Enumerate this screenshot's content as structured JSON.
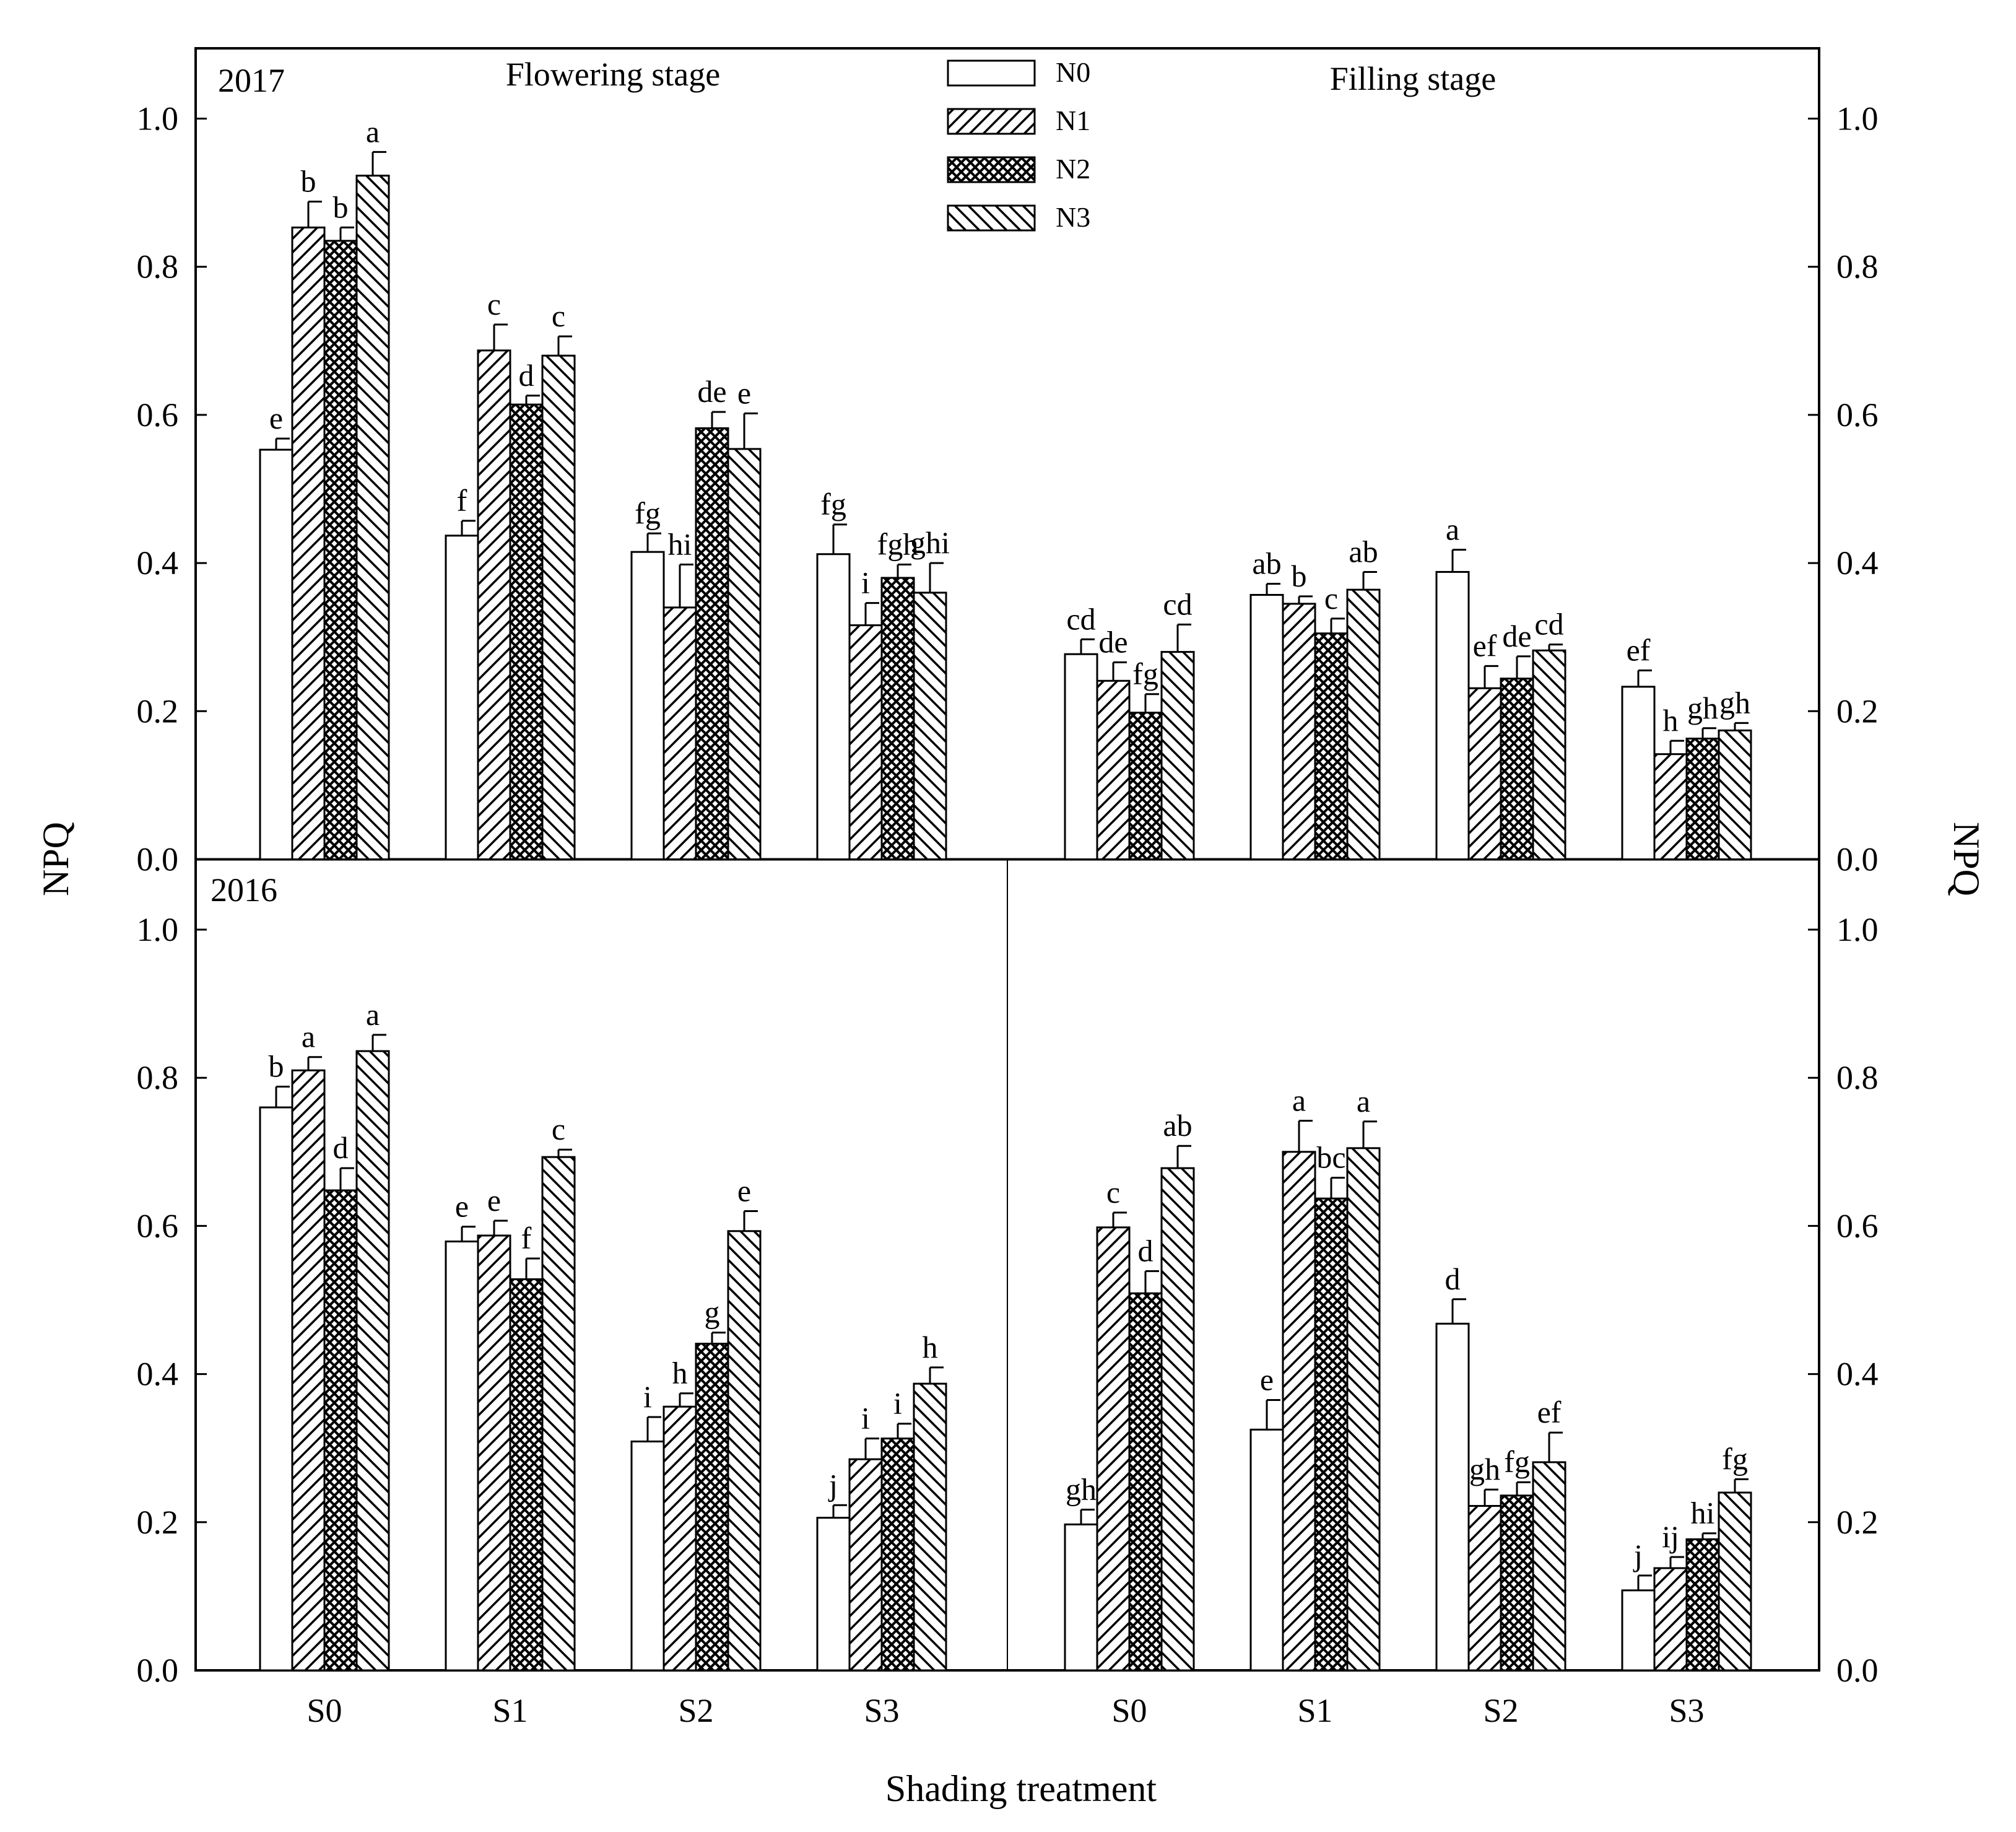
{
  "chart_data": {
    "type": "bar",
    "xlabel": "Shading treatment",
    "ylabel_left": "NPQ",
    "ylabel_right": "NPQ",
    "ylim": [
      0,
      1.1
    ],
    "yticks": [
      "0.0",
      "0.2",
      "0.4",
      "0.6",
      "0.8",
      "1.0"
    ],
    "categories": [
      "S0",
      "S1",
      "S2",
      "S3"
    ],
    "legend": [
      "N0",
      "N1",
      "N2",
      "N3"
    ],
    "stages": [
      "Flowering stage",
      "Filling stage"
    ],
    "years": [
      "2017",
      "2016"
    ],
    "panels": [
      {
        "year": "2017",
        "stage": "Flowering stage",
        "series": [
          {
            "name": "N0",
            "values": [
              0.553,
              0.437,
              0.415,
              0.412
            ],
            "errors": [
              0.015,
              0.02,
              0.025,
              0.04
            ],
            "labels": [
              "e",
              "f",
              "fg",
              "fg"
            ]
          },
          {
            "name": "N1",
            "values": [
              0.853,
              0.687,
              0.34,
              0.316
            ],
            "errors": [
              0.035,
              0.035,
              0.058,
              0.03
            ],
            "labels": [
              "b",
              "c",
              "hi",
              "i"
            ]
          },
          {
            "name": "N2",
            "values": [
              0.835,
              0.614,
              0.582,
              0.38
            ],
            "errors": [
              0.018,
              0.012,
              0.022,
              0.018
            ],
            "labels": [
              "b",
              "d",
              "de",
              "fgh"
            ]
          },
          {
            "name": "N3",
            "values": [
              0.923,
              0.68,
              0.554,
              0.36
            ],
            "errors": [
              0.032,
              0.026,
              0.048,
              0.04
            ],
            "labels": [
              "a",
              "c",
              "e",
              "ghi"
            ]
          }
        ]
      },
      {
        "year": "2017",
        "stage": "Filling stage",
        "series": [
          {
            "name": "N0",
            "values": [
              0.277,
              0.357,
              0.388,
              0.233
            ],
            "errors": [
              0.02,
              0.015,
              0.03,
              0.022
            ],
            "labels": [
              "cd",
              "ab",
              "a",
              "ef"
            ]
          },
          {
            "name": "N1",
            "values": [
              0.241,
              0.345,
              0.231,
              0.142
            ],
            "errors": [
              0.025,
              0.01,
              0.03,
              0.018
            ],
            "labels": [
              "de",
              "b",
              "ef",
              "h"
            ]
          },
          {
            "name": "N2",
            "values": [
              0.198,
              0.305,
              0.244,
              0.163
            ],
            "errors": [
              0.025,
              0.02,
              0.03,
              0.014
            ],
            "labels": [
              "fg",
              "c",
              "de",
              "gh"
            ]
          },
          {
            "name": "N3",
            "values": [
              0.28,
              0.364,
              0.282,
              0.174
            ],
            "errors": [
              0.037,
              0.024,
              0.008,
              0.01
            ],
            "labels": [
              "cd",
              "ab",
              "cd",
              "gh"
            ]
          }
        ]
      },
      {
        "year": "2016",
        "stage": "Flowering stage",
        "series": [
          {
            "name": "N0",
            "values": [
              0.76,
              0.579,
              0.309,
              0.206
            ],
            "errors": [
              0.028,
              0.02,
              0.033,
              0.017
            ],
            "labels": [
              "b",
              "e",
              "i",
              "j"
            ]
          },
          {
            "name": "N1",
            "values": [
              0.81,
              0.587,
              0.356,
              0.285
            ],
            "errors": [
              0.018,
              0.02,
              0.018,
              0.028
            ],
            "labels": [
              "a",
              "e",
              "h",
              "i"
            ]
          },
          {
            "name": "N2",
            "values": [
              0.648,
              0.528,
              0.441,
              0.313
            ],
            "errors": [
              0.03,
              0.028,
              0.015,
              0.02
            ],
            "labels": [
              "d",
              "f",
              "g",
              "i"
            ]
          },
          {
            "name": "N3",
            "values": [
              0.836,
              0.693,
              0.593,
              0.387
            ],
            "errors": [
              0.022,
              0.01,
              0.027,
              0.022
            ],
            "labels": [
              "a",
              "c",
              "e",
              "h"
            ]
          }
        ]
      },
      {
        "year": "2016",
        "stage": "Filling stage",
        "series": [
          {
            "name": "N0",
            "values": [
              0.197,
              0.325,
              0.468,
              0.108
            ],
            "errors": [
              0.02,
              0.04,
              0.033,
              0.02
            ],
            "labels": [
              "gh",
              "e",
              "d",
              "j"
            ]
          },
          {
            "name": "N1",
            "values": [
              0.598,
              0.7,
              0.222,
              0.138
            ],
            "errors": [
              0.02,
              0.042,
              0.022,
              0.015
            ],
            "labels": [
              "c",
              "a",
              "gh",
              "ij"
            ]
          },
          {
            "name": "N2",
            "values": [
              0.509,
              0.637,
              0.236,
              0.177
            ],
            "errors": [
              0.03,
              0.028,
              0.018,
              0.008
            ],
            "labels": [
              "d",
              "bc",
              "fg",
              "hi"
            ]
          },
          {
            "name": "N3",
            "values": [
              0.678,
              0.705,
              0.281,
              0.24
            ],
            "errors": [
              0.03,
              0.036,
              0.04,
              0.018
            ],
            "labels": [
              "ab",
              "a",
              "ef",
              "fg"
            ]
          }
        ]
      }
    ]
  }
}
